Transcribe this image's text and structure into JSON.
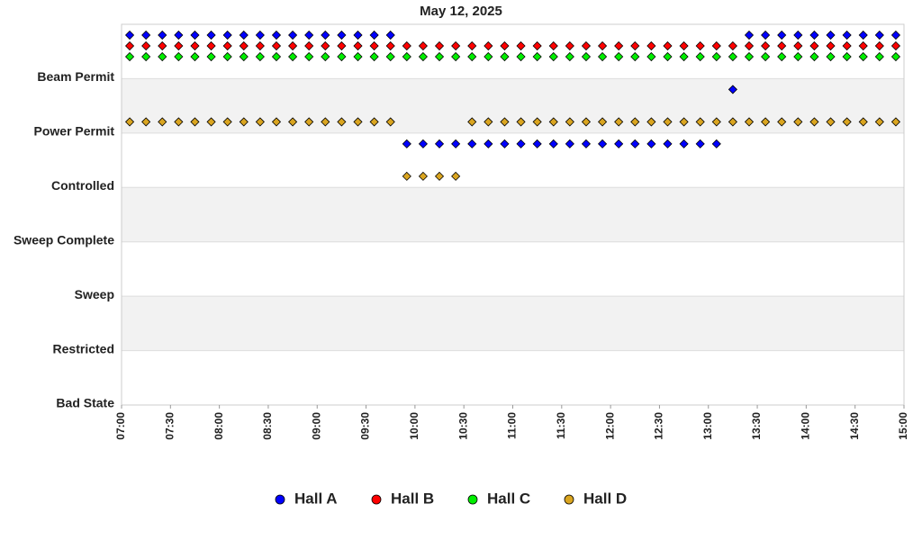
{
  "chart_data": {
    "type": "state-scatter",
    "title": "May 12, 2025",
    "y_categories": [
      "Beam Permit",
      "Power Permit",
      "Controlled",
      "Sweep Complete",
      "Sweep",
      "Restricted",
      "Bad State"
    ],
    "x": [
      "07:05",
      "07:15",
      "07:25",
      "07:35",
      "07:45",
      "07:55",
      "08:05",
      "08:15",
      "08:25",
      "08:35",
      "08:45",
      "08:55",
      "09:05",
      "09:15",
      "09:25",
      "09:35",
      "09:45",
      "09:55",
      "10:05",
      "10:15",
      "10:25",
      "10:35",
      "10:45",
      "10:55",
      "11:05",
      "11:15",
      "11:25",
      "11:35",
      "11:45",
      "11:55",
      "12:05",
      "12:15",
      "12:25",
      "12:35",
      "12:45",
      "12:55",
      "13:05",
      "13:15",
      "13:25",
      "13:35",
      "13:45",
      "13:55",
      "14:05",
      "14:15",
      "14:25",
      "14:35",
      "14:45",
      "14:55"
    ],
    "xlim": [
      "07:00",
      "15:00"
    ],
    "xticks": [
      "07:00",
      "07:30",
      "08:00",
      "08:30",
      "09:00",
      "09:30",
      "10:00",
      "10:30",
      "11:00",
      "11:30",
      "12:00",
      "12:30",
      "13:00",
      "13:30",
      "14:00",
      "14:30",
      "15:00"
    ],
    "legend": "bottom",
    "series": [
      {
        "name": "Hall A",
        "color": "#0000ff",
        "values": [
          "Beam Permit",
          "Beam Permit",
          "Beam Permit",
          "Beam Permit",
          "Beam Permit",
          "Beam Permit",
          "Beam Permit",
          "Beam Permit",
          "Beam Permit",
          "Beam Permit",
          "Beam Permit",
          "Beam Permit",
          "Beam Permit",
          "Beam Permit",
          "Beam Permit",
          "Beam Permit",
          "Beam Permit",
          "Controlled",
          "Controlled",
          "Controlled",
          "Controlled",
          "Controlled",
          "Controlled",
          "Controlled",
          "Controlled",
          "Controlled",
          "Controlled",
          "Controlled",
          "Controlled",
          "Controlled",
          "Controlled",
          "Controlled",
          "Controlled",
          "Controlled",
          "Controlled",
          "Controlled",
          "Controlled",
          "Power Permit",
          "Beam Permit",
          "Beam Permit",
          "Beam Permit",
          "Beam Permit",
          "Beam Permit",
          "Beam Permit",
          "Beam Permit",
          "Beam Permit",
          "Beam Permit",
          "Beam Permit"
        ]
      },
      {
        "name": "Hall B",
        "color": "#ff0000",
        "values": [
          "Beam Permit",
          "Beam Permit",
          "Beam Permit",
          "Beam Permit",
          "Beam Permit",
          "Beam Permit",
          "Beam Permit",
          "Beam Permit",
          "Beam Permit",
          "Beam Permit",
          "Beam Permit",
          "Beam Permit",
          "Beam Permit",
          "Beam Permit",
          "Beam Permit",
          "Beam Permit",
          "Beam Permit",
          "Beam Permit",
          "Beam Permit",
          "Beam Permit",
          "Beam Permit",
          "Beam Permit",
          "Beam Permit",
          "Beam Permit",
          "Beam Permit",
          "Beam Permit",
          "Beam Permit",
          "Beam Permit",
          "Beam Permit",
          "Beam Permit",
          "Beam Permit",
          "Beam Permit",
          "Beam Permit",
          "Beam Permit",
          "Beam Permit",
          "Beam Permit",
          "Beam Permit",
          "Beam Permit",
          "Beam Permit",
          "Beam Permit",
          "Beam Permit",
          "Beam Permit",
          "Beam Permit",
          "Beam Permit",
          "Beam Permit",
          "Beam Permit",
          "Beam Permit",
          "Beam Permit"
        ]
      },
      {
        "name": "Hall C",
        "color": "#00ee00",
        "values": [
          "Beam Permit",
          "Beam Permit",
          "Beam Permit",
          "Beam Permit",
          "Beam Permit",
          "Beam Permit",
          "Beam Permit",
          "Beam Permit",
          "Beam Permit",
          "Beam Permit",
          "Beam Permit",
          "Beam Permit",
          "Beam Permit",
          "Beam Permit",
          "Beam Permit",
          "Beam Permit",
          "Beam Permit",
          "Beam Permit",
          "Beam Permit",
          "Beam Permit",
          "Beam Permit",
          "Beam Permit",
          "Beam Permit",
          "Beam Permit",
          "Beam Permit",
          "Beam Permit",
          "Beam Permit",
          "Beam Permit",
          "Beam Permit",
          "Beam Permit",
          "Beam Permit",
          "Beam Permit",
          "Beam Permit",
          "Beam Permit",
          "Beam Permit",
          "Beam Permit",
          "Beam Permit",
          "Beam Permit",
          "Beam Permit",
          "Beam Permit",
          "Beam Permit",
          "Beam Permit",
          "Beam Permit",
          "Beam Permit",
          "Beam Permit",
          "Beam Permit",
          "Beam Permit",
          "Beam Permit"
        ]
      },
      {
        "name": "Hall D",
        "color": "#daa520",
        "values": [
          "Power Permit",
          "Power Permit",
          "Power Permit",
          "Power Permit",
          "Power Permit",
          "Power Permit",
          "Power Permit",
          "Power Permit",
          "Power Permit",
          "Power Permit",
          "Power Permit",
          "Power Permit",
          "Power Permit",
          "Power Permit",
          "Power Permit",
          "Power Permit",
          "Power Permit",
          "Controlled",
          "Controlled",
          "Controlled",
          "Controlled",
          "Power Permit",
          "Power Permit",
          "Power Permit",
          "Power Permit",
          "Power Permit",
          "Power Permit",
          "Power Permit",
          "Power Permit",
          "Power Permit",
          "Power Permit",
          "Power Permit",
          "Power Permit",
          "Power Permit",
          "Power Permit",
          "Power Permit",
          "Power Permit",
          "Power Permit",
          "Power Permit",
          "Power Permit",
          "Power Permit",
          "Power Permit",
          "Power Permit",
          "Power Permit",
          "Power Permit",
          "Power Permit",
          "Power Permit",
          "Power Permit"
        ]
      }
    ]
  }
}
